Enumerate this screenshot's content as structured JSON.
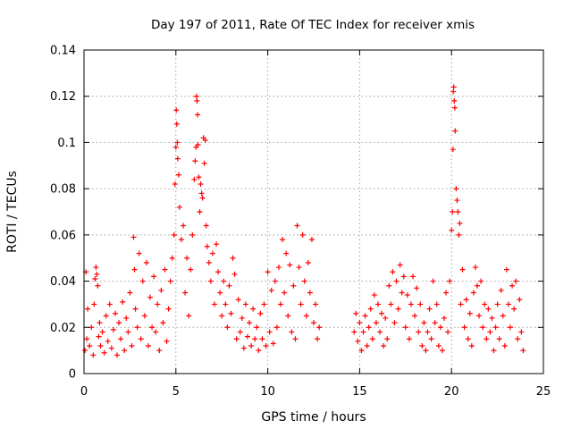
{
  "chart_data": {
    "type": "scatter",
    "title": "Day 197 of 2011, Rate Of TEC Index for receiver xmis",
    "xlabel": "GPS time / hours",
    "ylabel": "ROTI / TECUs",
    "xlim": [
      0,
      25
    ],
    "ylim": [
      0,
      0.14
    ],
    "xticks": [
      0,
      5,
      10,
      15,
      20,
      25
    ],
    "xtick_labels": [
      "0",
      "5",
      "10",
      "15",
      "20",
      "25"
    ],
    "yticks": [
      0,
      0.02,
      0.04,
      0.06,
      0.08,
      0.1,
      0.12,
      0.14
    ],
    "ytick_labels": [
      "0",
      "0.02",
      "0.04",
      "0.06",
      "0.08",
      "0.1",
      "0.12",
      "0.14"
    ],
    "grid": true,
    "marker": "plus",
    "color": "#ff0000",
    "series": [
      {
        "name": "",
        "points": [
          [
            0.05,
            0.01
          ],
          [
            0.1,
            0.044
          ],
          [
            0.15,
            0.015
          ],
          [
            0.2,
            0.028
          ],
          [
            0.3,
            0.012
          ],
          [
            0.4,
            0.02
          ],
          [
            0.5,
            0.008
          ],
          [
            0.55,
            0.03
          ],
          [
            0.6,
            0.041
          ],
          [
            0.65,
            0.046
          ],
          [
            0.7,
            0.043
          ],
          [
            0.75,
            0.038
          ],
          [
            0.8,
            0.016
          ],
          [
            0.85,
            0.022
          ],
          [
            0.9,
            0.012
          ],
          [
            1.0,
            0.018
          ],
          [
            1.1,
            0.009
          ],
          [
            1.2,
            0.025
          ],
          [
            1.3,
            0.014
          ],
          [
            1.4,
            0.03
          ],
          [
            1.5,
            0.011
          ],
          [
            1.6,
            0.019
          ],
          [
            1.7,
            0.026
          ],
          [
            1.8,
            0.008
          ],
          [
            1.9,
            0.022
          ],
          [
            2.0,
            0.015
          ],
          [
            2.1,
            0.031
          ],
          [
            2.2,
            0.01
          ],
          [
            2.3,
            0.024
          ],
          [
            2.4,
            0.018
          ],
          [
            2.5,
            0.035
          ],
          [
            2.6,
            0.012
          ],
          [
            2.7,
            0.059
          ],
          [
            2.75,
            0.045
          ],
          [
            2.8,
            0.028
          ],
          [
            2.9,
            0.02
          ],
          [
            3.0,
            0.052
          ],
          [
            3.1,
            0.015
          ],
          [
            3.2,
            0.04
          ],
          [
            3.3,
            0.025
          ],
          [
            3.4,
            0.048
          ],
          [
            3.5,
            0.012
          ],
          [
            3.6,
            0.033
          ],
          [
            3.7,
            0.02
          ],
          [
            3.8,
            0.042
          ],
          [
            3.9,
            0.018
          ],
          [
            4.0,
            0.03
          ],
          [
            4.1,
            0.01
          ],
          [
            4.2,
            0.036
          ],
          [
            4.3,
            0.022
          ],
          [
            4.4,
            0.045
          ],
          [
            4.5,
            0.014
          ],
          [
            4.6,
            0.028
          ],
          [
            4.7,
            0.04
          ],
          [
            4.8,
            0.05
          ],
          [
            4.9,
            0.06
          ],
          [
            4.95,
            0.082
          ],
          [
            5.0,
            0.098
          ],
          [
            5.02,
            0.114
          ],
          [
            5.05,
            0.108
          ],
          [
            5.08,
            0.1
          ],
          [
            5.1,
            0.093
          ],
          [
            5.15,
            0.086
          ],
          [
            5.2,
            0.072
          ],
          [
            5.3,
            0.058
          ],
          [
            5.4,
            0.064
          ],
          [
            5.5,
            0.035
          ],
          [
            5.6,
            0.05
          ],
          [
            5.7,
            0.025
          ],
          [
            5.8,
            0.045
          ],
          [
            5.9,
            0.06
          ],
          [
            6.0,
            0.084
          ],
          [
            6.05,
            0.092
          ],
          [
            6.1,
            0.098
          ],
          [
            6.12,
            0.12
          ],
          [
            6.15,
            0.118
          ],
          [
            6.18,
            0.112
          ],
          [
            6.2,
            0.099
          ],
          [
            6.25,
            0.085
          ],
          [
            6.3,
            0.07
          ],
          [
            6.35,
            0.082
          ],
          [
            6.4,
            0.078
          ],
          [
            6.45,
            0.076
          ],
          [
            6.5,
            0.102
          ],
          [
            6.55,
            0.091
          ],
          [
            6.6,
            0.101
          ],
          [
            6.65,
            0.064
          ],
          [
            6.7,
            0.055
          ],
          [
            6.8,
            0.048
          ],
          [
            6.9,
            0.04
          ],
          [
            7.0,
            0.052
          ],
          [
            7.1,
            0.03
          ],
          [
            7.2,
            0.056
          ],
          [
            7.3,
            0.044
          ],
          [
            7.4,
            0.035
          ],
          [
            7.5,
            0.025
          ],
          [
            7.6,
            0.04
          ],
          [
            7.7,
            0.03
          ],
          [
            7.8,
            0.02
          ],
          [
            7.9,
            0.038
          ],
          [
            8.0,
            0.026
          ],
          [
            8.1,
            0.05
          ],
          [
            8.2,
            0.043
          ],
          [
            8.3,
            0.015
          ],
          [
            8.4,
            0.032
          ],
          [
            8.5,
            0.018
          ],
          [
            8.6,
            0.024
          ],
          [
            8.7,
            0.011
          ],
          [
            8.8,
            0.03
          ],
          [
            8.9,
            0.016
          ],
          [
            9.0,
            0.022
          ],
          [
            9.1,
            0.012
          ],
          [
            9.2,
            0.028
          ],
          [
            9.3,
            0.015
          ],
          [
            9.4,
            0.02
          ],
          [
            9.5,
            0.01
          ],
          [
            9.6,
            0.026
          ],
          [
            9.7,
            0.015
          ],
          [
            9.8,
            0.03
          ],
          [
            9.9,
            0.012
          ],
          [
            10.0,
            0.044
          ],
          [
            10.1,
            0.018
          ],
          [
            10.2,
            0.036
          ],
          [
            10.3,
            0.013
          ],
          [
            10.4,
            0.04
          ],
          [
            10.5,
            0.02
          ],
          [
            10.6,
            0.046
          ],
          [
            10.7,
            0.03
          ],
          [
            10.8,
            0.058
          ],
          [
            10.9,
            0.035
          ],
          [
            11.0,
            0.052
          ],
          [
            11.1,
            0.025
          ],
          [
            11.2,
            0.047
          ],
          [
            11.3,
            0.018
          ],
          [
            11.4,
            0.038
          ],
          [
            11.5,
            0.015
          ],
          [
            11.6,
            0.064
          ],
          [
            11.7,
            0.046
          ],
          [
            11.8,
            0.03
          ],
          [
            11.9,
            0.06
          ],
          [
            12.0,
            0.04
          ],
          [
            12.1,
            0.025
          ],
          [
            12.2,
            0.048
          ],
          [
            12.3,
            0.035
          ],
          [
            12.4,
            0.058
          ],
          [
            12.5,
            0.022
          ],
          [
            12.6,
            0.03
          ],
          [
            12.7,
            0.015
          ],
          [
            12.8,
            0.02
          ],
          [
            14.7,
            0.018
          ],
          [
            14.8,
            0.026
          ],
          [
            14.9,
            0.014
          ],
          [
            15.0,
            0.022
          ],
          [
            15.1,
            0.01
          ],
          [
            15.2,
            0.018
          ],
          [
            15.3,
            0.025
          ],
          [
            15.4,
            0.012
          ],
          [
            15.5,
            0.02
          ],
          [
            15.6,
            0.028
          ],
          [
            15.7,
            0.015
          ],
          [
            15.8,
            0.034
          ],
          [
            15.9,
            0.022
          ],
          [
            16.0,
            0.03
          ],
          [
            16.1,
            0.018
          ],
          [
            16.2,
            0.026
          ],
          [
            16.3,
            0.012
          ],
          [
            16.4,
            0.024
          ],
          [
            16.5,
            0.015
          ],
          [
            16.6,
            0.038
          ],
          [
            16.7,
            0.03
          ],
          [
            16.8,
            0.044
          ],
          [
            16.9,
            0.022
          ],
          [
            17.0,
            0.04
          ],
          [
            17.1,
            0.028
          ],
          [
            17.2,
            0.047
          ],
          [
            17.3,
            0.035
          ],
          [
            17.4,
            0.042
          ],
          [
            17.5,
            0.02
          ],
          [
            17.6,
            0.034
          ],
          [
            17.7,
            0.015
          ],
          [
            17.8,
            0.03
          ],
          [
            17.9,
            0.042
          ],
          [
            18.0,
            0.025
          ],
          [
            18.1,
            0.037
          ],
          [
            18.2,
            0.018
          ],
          [
            18.3,
            0.03
          ],
          [
            18.4,
            0.012
          ],
          [
            18.5,
            0.022
          ],
          [
            18.6,
            0.01
          ],
          [
            18.7,
            0.018
          ],
          [
            18.8,
            0.028
          ],
          [
            18.9,
            0.015
          ],
          [
            19.0,
            0.04
          ],
          [
            19.1,
            0.022
          ],
          [
            19.2,
            0.03
          ],
          [
            19.3,
            0.012
          ],
          [
            19.4,
            0.02
          ],
          [
            19.5,
            0.01
          ],
          [
            19.6,
            0.024
          ],
          [
            19.7,
            0.035
          ],
          [
            19.8,
            0.018
          ],
          [
            19.9,
            0.04
          ],
          [
            20.0,
            0.062
          ],
          [
            20.05,
            0.07
          ],
          [
            20.08,
            0.097
          ],
          [
            20.1,
            0.122
          ],
          [
            20.12,
            0.124
          ],
          [
            20.15,
            0.118
          ],
          [
            20.18,
            0.115
          ],
          [
            20.2,
            0.105
          ],
          [
            20.25,
            0.08
          ],
          [
            20.3,
            0.075
          ],
          [
            20.35,
            0.07
          ],
          [
            20.4,
            0.06
          ],
          [
            20.45,
            0.065
          ],
          [
            20.5,
            0.03
          ],
          [
            20.6,
            0.045
          ],
          [
            20.7,
            0.02
          ],
          [
            20.8,
            0.032
          ],
          [
            20.9,
            0.015
          ],
          [
            21.0,
            0.026
          ],
          [
            21.1,
            0.012
          ],
          [
            21.2,
            0.035
          ],
          [
            21.3,
            0.046
          ],
          [
            21.4,
            0.038
          ],
          [
            21.5,
            0.025
          ],
          [
            21.6,
            0.04
          ],
          [
            21.7,
            0.02
          ],
          [
            21.8,
            0.03
          ],
          [
            21.9,
            0.015
          ],
          [
            22.0,
            0.028
          ],
          [
            22.1,
            0.018
          ],
          [
            22.2,
            0.024
          ],
          [
            22.3,
            0.01
          ],
          [
            22.4,
            0.02
          ],
          [
            22.5,
            0.03
          ],
          [
            22.6,
            0.015
          ],
          [
            22.7,
            0.036
          ],
          [
            22.8,
            0.025
          ],
          [
            22.9,
            0.012
          ],
          [
            23.0,
            0.045
          ],
          [
            23.1,
            0.03
          ],
          [
            23.2,
            0.02
          ],
          [
            23.3,
            0.038
          ],
          [
            23.4,
            0.028
          ],
          [
            23.5,
            0.04
          ],
          [
            23.6,
            0.015
          ],
          [
            23.7,
            0.032
          ],
          [
            23.8,
            0.018
          ],
          [
            23.9,
            0.01
          ]
        ]
      }
    ]
  }
}
